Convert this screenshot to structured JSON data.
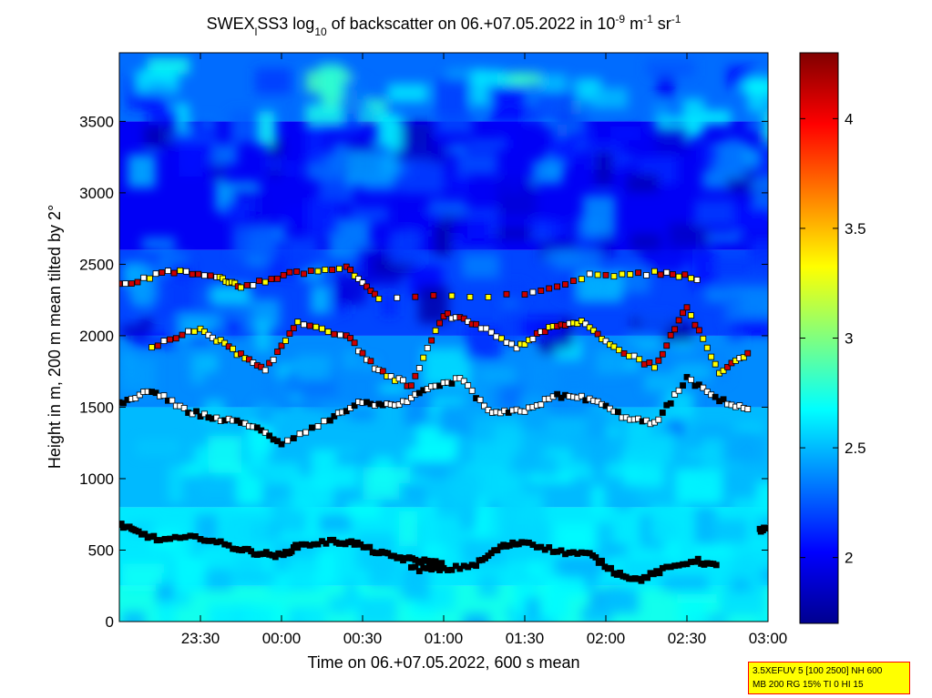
{
  "chart_data": {
    "type": "heatmap",
    "title_parts": [
      "SWEX",
      "l",
      "SS3 log",
      "10",
      " of backscatter on 06.+07.05.2022 in 10",
      "-9",
      " m",
      "-1",
      " sr",
      "-1"
    ],
    "xlabel": "Time on 06.+07.05.2022, 600 s mean",
    "ylabel": "Height in m, 200 m mean tilted by 2°",
    "x_ticks": [
      "23:30",
      "00:00",
      "00:30",
      "01:00",
      "01:30",
      "02:00",
      "02:30",
      "03:00"
    ],
    "x_tick_hours": [
      23.5,
      24.0,
      24.5,
      25.0,
      25.5,
      26.0,
      26.5,
      27.0
    ],
    "xlim_hours": [
      23.0,
      27.0
    ],
    "y_ticks": [
      0,
      500,
      1000,
      1500,
      2000,
      2500,
      3000,
      3500
    ],
    "ylim": [
      0,
      3980
    ],
    "colorbar": {
      "ticks": [
        2,
        2.5,
        3,
        3.5,
        4
      ],
      "tick_labels": [
        "2",
        "2.5",
        "3",
        "3.5",
        "4"
      ],
      "range": [
        1.7,
        4.3
      ],
      "colormap": "jet"
    },
    "layers": [
      {
        "height_band": [
          0,
          250
        ],
        "log_backscatter": 2.72
      },
      {
        "height_band": [
          250,
          800
        ],
        "log_backscatter": 2.62
      },
      {
        "height_band": [
          800,
          1500
        ],
        "log_backscatter": 2.5
      },
      {
        "height_band": [
          1500,
          2000
        ],
        "log_backscatter": 2.38
      },
      {
        "height_band": [
          2000,
          2600
        ],
        "log_backscatter": 2.2
      },
      {
        "height_band": [
          2600,
          3500
        ],
        "log_backscatter": 2.0
      },
      {
        "height_band": [
          3500,
          3980
        ],
        "log_backscatter": 2.3
      }
    ],
    "markers": {
      "boundary_layer": {
        "times": [
          23.0,
          23.1,
          23.25,
          23.5,
          23.7,
          23.85,
          24.0,
          24.1,
          24.3,
          24.45,
          24.6,
          24.75,
          24.9,
          25.0
        ],
        "heights": [
          680,
          630,
          570,
          590,
          520,
          480,
          460,
          530,
          560,
          550,
          480,
          440,
          420,
          400
        ]
      },
      "lower_layer": {
        "times": [
          24.8,
          25.0,
          25.2,
          25.35,
          25.5,
          25.7,
          25.9,
          26.05,
          26.2,
          26.35,
          26.55,
          26.7
        ],
        "heights": [
          370,
          360,
          400,
          520,
          560,
          490,
          470,
          350,
          290,
          360,
          430,
          380
        ]
      },
      "evening_layer": {
        "times": [
          26.95,
          27.0
        ],
        "heights": [
          640,
          650
        ]
      },
      "mid_layer": {
        "times": [
          23.0,
          23.2,
          23.4,
          23.6,
          23.8,
          24.0,
          24.3,
          24.5,
          24.7,
          24.9,
          25.1,
          25.3,
          25.5,
          25.7,
          25.9,
          26.1,
          26.3,
          26.5,
          26.7,
          26.9
        ],
        "heights": [
          1520,
          1620,
          1480,
          1420,
          1380,
          1250,
          1420,
          1540,
          1500,
          1620,
          1700,
          1450,
          1480,
          1580,
          1560,
          1440,
          1380,
          1700,
          1550,
          1480
        ]
      },
      "upper_layer": {
        "times": [
          23.2,
          23.5,
          23.7,
          23.9,
          24.1,
          24.4,
          24.6,
          24.8,
          25.0,
          25.2,
          25.45,
          25.65,
          25.85,
          26.05,
          26.3,
          26.5,
          26.7,
          26.9
        ],
        "heights": [
          1920,
          2050,
          1900,
          1750,
          2100,
          2000,
          1750,
          1650,
          2150,
          2080,
          1920,
          2050,
          2100,
          1920,
          1780,
          2200,
          1750,
          1900
        ]
      },
      "top_layer": {
        "times": [
          23.0,
          23.3,
          23.6,
          23.75,
          24.05,
          24.4,
          24.6,
          25.5,
          25.9,
          26.3,
          26.6
        ],
        "heights": [
          2350,
          2450,
          2420,
          2340,
          2430,
          2480,
          2260,
          2280,
          2420,
          2440,
          2400
        ]
      }
    }
  },
  "info_box": {
    "line1": "3.5XEFUV 5 [100 2500] NH 600",
    "line2": "MB 200 RG 15% TI 0 HI 15"
  }
}
